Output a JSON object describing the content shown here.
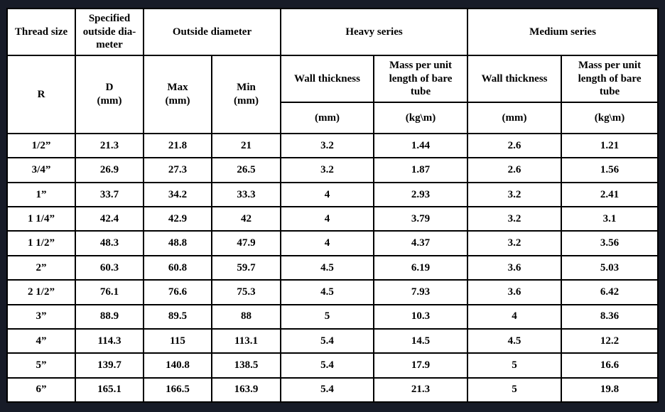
{
  "page": {
    "background_color": "#171b27",
    "table_background": "#ffffff",
    "border_color": "#000000",
    "text_color": "#000000"
  },
  "table": {
    "header": {
      "thread_size": "Thread size",
      "specified_od": "Specified\noutside dia-\nmeter",
      "outside_diameter": "Outside diameter",
      "heavy_series": "Heavy series",
      "medium_series": "Medium series",
      "r": "R",
      "d_mm": "D\n(mm)",
      "max_mm": "Max\n(mm)",
      "min_mm": "Min\n(mm)",
      "wall_thickness": "Wall thickness",
      "mass_per_unit": "Mass per unit\nlength of bare\ntube",
      "unit_mm": "(mm)",
      "unit_kgm": "(kg\\m)"
    },
    "rows": [
      [
        "1/2”",
        "21.3",
        "21.8",
        "21",
        "3.2",
        "1.44",
        "2.6",
        "1.21"
      ],
      [
        "3/4”",
        "26.9",
        "27.3",
        "26.5",
        "3.2",
        "1.87",
        "2.6",
        "1.56"
      ],
      [
        "1”",
        "33.7",
        "34.2",
        "33.3",
        "4",
        "2.93",
        "3.2",
        "2.41"
      ],
      [
        "1 1/4”",
        "42.4",
        "42.9",
        "42",
        "4",
        "3.79",
        "3.2",
        "3.1"
      ],
      [
        "1 1/2”",
        "48.3",
        "48.8",
        "47.9",
        "4",
        "4.37",
        "3.2",
        "3.56"
      ],
      [
        "2”",
        "60.3",
        "60.8",
        "59.7",
        "4.5",
        "6.19",
        "3.6",
        "5.03"
      ],
      [
        "2 1/2”",
        "76.1",
        "76.6",
        "75.3",
        "4.5",
        "7.93",
        "3.6",
        "6.42"
      ],
      [
        "3”",
        "88.9",
        "89.5",
        "88",
        "5",
        "10.3",
        "4",
        "8.36"
      ],
      [
        "4”",
        "114.3",
        "115",
        "113.1",
        "5.4",
        "14.5",
        "4.5",
        "12.2"
      ],
      [
        "5”",
        "139.7",
        "140.8",
        "138.5",
        "5.4",
        "17.9",
        "5",
        "16.6"
      ],
      [
        "6”",
        "165.1",
        "166.5",
        "163.9",
        "5.4",
        "21.3",
        "5",
        "19.8"
      ]
    ]
  }
}
